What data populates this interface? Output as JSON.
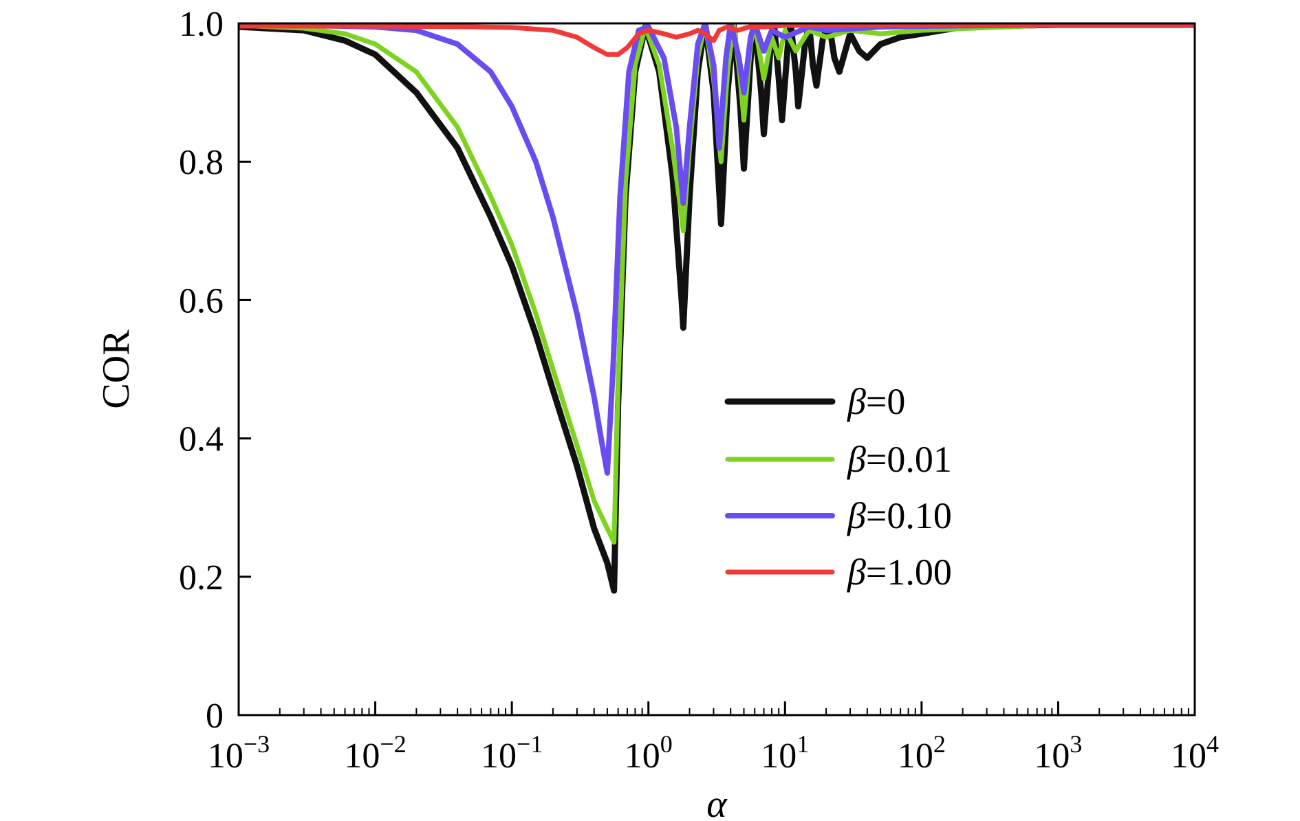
{
  "chart_data": {
    "type": "line",
    "title": "",
    "xlabel": "α",
    "ylabel": "COR",
    "x_scale": "log",
    "xlim": [
      0.001,
      10000
    ],
    "ylim": [
      0,
      1.0
    ],
    "x_ticks": [
      {
        "base": "10",
        "exp": "−3"
      },
      {
        "base": "10",
        "exp": "−2"
      },
      {
        "base": "10",
        "exp": "−1"
      },
      {
        "base": "10",
        "exp": "0"
      },
      {
        "base": "10",
        "exp": "1"
      },
      {
        "base": "10",
        "exp": "2"
      },
      {
        "base": "10",
        "exp": "3"
      },
      {
        "base": "10",
        "exp": "4"
      }
    ],
    "y_ticks": [
      "0",
      "0.2",
      "0.4",
      "0.6",
      "0.8",
      "1.0"
    ],
    "y_tick_values": [
      0,
      0.2,
      0.4,
      0.6,
      0.8,
      1.0
    ],
    "grid": false,
    "legend_position": "center-right",
    "series": [
      {
        "name": "β=0",
        "color": "#111111",
        "points": [
          [
            0.001,
            0.995
          ],
          [
            0.003,
            0.99
          ],
          [
            0.006,
            0.975
          ],
          [
            0.01,
            0.955
          ],
          [
            0.02,
            0.9
          ],
          [
            0.04,
            0.82
          ],
          [
            0.07,
            0.72
          ],
          [
            0.1,
            0.65
          ],
          [
            0.15,
            0.55
          ],
          [
            0.2,
            0.47
          ],
          [
            0.3,
            0.36
          ],
          [
            0.4,
            0.27
          ],
          [
            0.5,
            0.22
          ],
          [
            0.56,
            0.18
          ],
          [
            0.6,
            0.45
          ],
          [
            0.68,
            0.75
          ],
          [
            0.8,
            0.93
          ],
          [
            0.95,
            0.995
          ],
          [
            1.2,
            0.93
          ],
          [
            1.5,
            0.78
          ],
          [
            1.75,
            0.6
          ],
          [
            1.8,
            0.56
          ],
          [
            2.0,
            0.75
          ],
          [
            2.3,
            0.93
          ],
          [
            2.6,
            1.0
          ],
          [
            3.0,
            0.9
          ],
          [
            3.4,
            0.71
          ],
          [
            3.8,
            0.9
          ],
          [
            4.2,
            1.0
          ],
          [
            4.7,
            0.88
          ],
          [
            5.0,
            0.79
          ],
          [
            5.6,
            0.95
          ],
          [
            6.0,
            1.0
          ],
          [
            6.7,
            0.9
          ],
          [
            7.0,
            0.84
          ],
          [
            7.8,
            0.96
          ],
          [
            8.3,
            1.0
          ],
          [
            9.0,
            0.92
          ],
          [
            9.5,
            0.86
          ],
          [
            10.5,
            0.97
          ],
          [
            11,
            1.0
          ],
          [
            12,
            0.93
          ],
          [
            12.5,
            0.88
          ],
          [
            14,
            0.97
          ],
          [
            15,
            1.0
          ],
          [
            16,
            0.94
          ],
          [
            17,
            0.91
          ],
          [
            19,
            0.98
          ],
          [
            21,
            1.0
          ],
          [
            23,
            0.95
          ],
          [
            25,
            0.93
          ],
          [
            30,
            0.985
          ],
          [
            35,
            0.96
          ],
          [
            40,
            0.95
          ],
          [
            50,
            0.97
          ],
          [
            70,
            0.98
          ],
          [
            100,
            0.985
          ],
          [
            200,
            0.995
          ],
          [
            1000,
            0.998
          ],
          [
            10000,
            0.998
          ]
        ]
      },
      {
        "name": "β=0.01",
        "color": "#7ed321",
        "points": [
          [
            0.001,
            0.997
          ],
          [
            0.003,
            0.993
          ],
          [
            0.006,
            0.985
          ],
          [
            0.01,
            0.97
          ],
          [
            0.02,
            0.93
          ],
          [
            0.04,
            0.85
          ],
          [
            0.07,
            0.75
          ],
          [
            0.1,
            0.68
          ],
          [
            0.15,
            0.58
          ],
          [
            0.2,
            0.5
          ],
          [
            0.3,
            0.39
          ],
          [
            0.4,
            0.31
          ],
          [
            0.5,
            0.27
          ],
          [
            0.56,
            0.25
          ],
          [
            0.6,
            0.48
          ],
          [
            0.68,
            0.77
          ],
          [
            0.8,
            0.94
          ],
          [
            0.95,
            0.995
          ],
          [
            1.2,
            0.94
          ],
          [
            1.5,
            0.82
          ],
          [
            1.75,
            0.72
          ],
          [
            1.8,
            0.7
          ],
          [
            2.0,
            0.82
          ],
          [
            2.3,
            0.95
          ],
          [
            2.6,
            1.0
          ],
          [
            3.0,
            0.92
          ],
          [
            3.4,
            0.8
          ],
          [
            3.8,
            0.93
          ],
          [
            4.2,
            1.0
          ],
          [
            4.7,
            0.92
          ],
          [
            5.0,
            0.86
          ],
          [
            5.6,
            0.97
          ],
          [
            6.0,
            1.0
          ],
          [
            7.0,
            0.92
          ],
          [
            8.0,
            0.98
          ],
          [
            9.0,
            0.95
          ],
          [
            10,
            0.99
          ],
          [
            12,
            0.96
          ],
          [
            15,
            0.99
          ],
          [
            20,
            0.98
          ],
          [
            30,
            0.99
          ],
          [
            50,
            0.985
          ],
          [
            100,
            0.99
          ],
          [
            1000,
            0.998
          ],
          [
            10000,
            0.998
          ]
        ]
      },
      {
        "name": "β=0.10",
        "color": "#6a4cf0",
        "points": [
          [
            0.001,
            0.998
          ],
          [
            0.003,
            0.997
          ],
          [
            0.01,
            0.995
          ],
          [
            0.02,
            0.99
          ],
          [
            0.04,
            0.97
          ],
          [
            0.07,
            0.93
          ],
          [
            0.1,
            0.88
          ],
          [
            0.15,
            0.8
          ],
          [
            0.2,
            0.72
          ],
          [
            0.3,
            0.58
          ],
          [
            0.4,
            0.46
          ],
          [
            0.45,
            0.4
          ],
          [
            0.5,
            0.35
          ],
          [
            0.55,
            0.5
          ],
          [
            0.62,
            0.75
          ],
          [
            0.72,
            0.93
          ],
          [
            0.85,
            0.99
          ],
          [
            1.0,
            0.995
          ],
          [
            1.3,
            0.95
          ],
          [
            1.6,
            0.85
          ],
          [
            1.8,
            0.74
          ],
          [
            2.0,
            0.85
          ],
          [
            2.3,
            0.97
          ],
          [
            2.6,
            1.0
          ],
          [
            3.0,
            0.94
          ],
          [
            3.3,
            0.82
          ],
          [
            3.7,
            0.95
          ],
          [
            4.0,
            1.0
          ],
          [
            4.6,
            0.95
          ],
          [
            5.0,
            0.9
          ],
          [
            5.6,
            0.98
          ],
          [
            6.0,
            1.0
          ],
          [
            7.0,
            0.96
          ],
          [
            8.0,
            0.99
          ],
          [
            10,
            0.98
          ],
          [
            15,
            0.995
          ],
          [
            20,
            0.99
          ],
          [
            50,
            0.995
          ],
          [
            100,
            0.996
          ],
          [
            1000,
            0.998
          ],
          [
            10000,
            0.998
          ]
        ]
      },
      {
        "name": "β=1.00",
        "color": "#f03a3a",
        "points": [
          [
            0.001,
            0.996
          ],
          [
            0.01,
            0.996
          ],
          [
            0.05,
            0.995
          ],
          [
            0.1,
            0.994
          ],
          [
            0.2,
            0.99
          ],
          [
            0.3,
            0.98
          ],
          [
            0.4,
            0.965
          ],
          [
            0.5,
            0.955
          ],
          [
            0.6,
            0.955
          ],
          [
            0.7,
            0.965
          ],
          [
            0.85,
            0.985
          ],
          [
            1.0,
            0.99
          ],
          [
            1.3,
            0.985
          ],
          [
            1.6,
            0.98
          ],
          [
            2.0,
            0.985
          ],
          [
            2.3,
            0.99
          ],
          [
            2.6,
            0.985
          ],
          [
            3.0,
            0.975
          ],
          [
            3.3,
            0.99
          ],
          [
            3.8,
            0.995
          ],
          [
            4.5,
            0.99
          ],
          [
            5.5,
            0.995
          ],
          [
            7,
            0.995
          ],
          [
            10,
            0.997
          ],
          [
            100,
            0.998
          ],
          [
            1000,
            0.998
          ],
          [
            10000,
            0.998
          ]
        ]
      }
    ]
  }
}
